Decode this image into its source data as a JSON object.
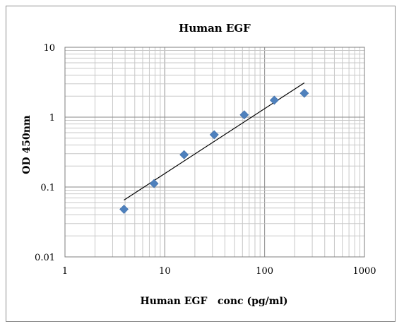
{
  "chart_data": {
    "type": "scatter",
    "title": "Human EGF",
    "xlabel": "Human EGF   conc (pg/ml)",
    "ylabel": "OD 450nm",
    "x_scale": "log",
    "y_scale": "log",
    "xlim": [
      1,
      1000
    ],
    "ylim": [
      0.01,
      10
    ],
    "x_ticks": [
      "1",
      "10",
      "100",
      "1000"
    ],
    "y_ticks": [
      "0.01",
      "0.1",
      "1",
      "10"
    ],
    "grid": true,
    "marker_color": "#4f81bd",
    "trendline_color": "#000000",
    "series": [
      {
        "x": [
          3.9,
          7.8,
          15.6,
          31.25,
          62.5,
          125,
          250
        ],
        "y": [
          0.048,
          0.112,
          0.29,
          0.56,
          1.08,
          1.75,
          2.2
        ]
      }
    ],
    "trendline": {
      "x": [
        3.9,
        250
      ],
      "y": [
        0.065,
        3.1
      ]
    }
  }
}
